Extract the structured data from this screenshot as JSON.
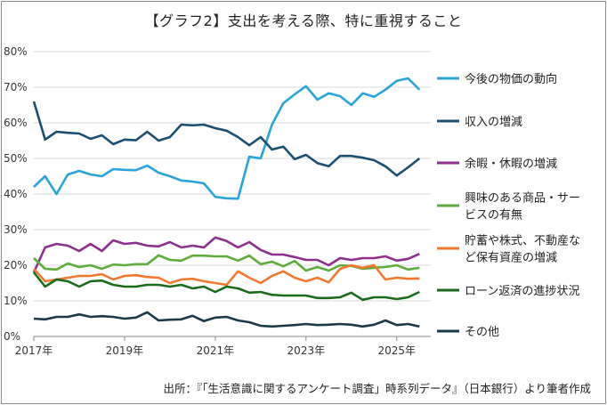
{
  "title": "【グラフ2】支出を考える際、特に重視すること",
  "source": "出所：『「生活意識に関するアンケート調査」時系列データ』（日本銀行）より筆者作成",
  "chart_data": {
    "type": "line",
    "title": "【グラフ2】支出を考える際、特に重視すること",
    "xlabel": "",
    "ylabel": "",
    "ylim": [
      0,
      80
    ],
    "xlim": [
      2017,
      2025.75
    ],
    "x_ticks": [
      "2017年",
      "2019年",
      "2021年",
      "2023年",
      "2025年"
    ],
    "y_ticks": [
      "0%",
      "10%",
      "20%",
      "30%",
      "40%",
      "50%",
      "60%",
      "70%",
      "80%"
    ],
    "x": [
      2017.0,
      2017.25,
      2017.5,
      2017.75,
      2018.0,
      2018.25,
      2018.5,
      2018.75,
      2019.0,
      2019.25,
      2019.5,
      2019.75,
      2020.0,
      2020.25,
      2020.5,
      2020.75,
      2021.0,
      2021.25,
      2021.5,
      2021.75,
      2022.0,
      2022.25,
      2022.5,
      2022.75,
      2023.0,
      2023.25,
      2023.5,
      2023.75,
      2024.0,
      2024.25,
      2024.5,
      2024.75,
      2025.0,
      2025.25,
      2025.5
    ],
    "series": [
      {
        "name": "今後の物価の動向",
        "color": "#2aa4d8",
        "label_lines": [
          "今後の物価の動向"
        ],
        "values": [
          42,
          45,
          40,
          45.5,
          46.5,
          45.5,
          45,
          47,
          46.8,
          46.7,
          48,
          46,
          45,
          43.8,
          43.5,
          43,
          39.2,
          38.8,
          38.7,
          50.5,
          50,
          59.5,
          65.5,
          68,
          70.3,
          66.5,
          68.3,
          67.5,
          65,
          68.3,
          67.3,
          69.3,
          71.8,
          72.5,
          69.3
        ]
      },
      {
        "name": "収入の増減",
        "color": "#1b4f72",
        "label_lines": [
          "収入の増減"
        ],
        "values": [
          66,
          55.3,
          57.5,
          57.2,
          57,
          55.5,
          56.5,
          54,
          55.3,
          55.1,
          57.5,
          55,
          56,
          59.5,
          59.3,
          59.5,
          58.5,
          57.8,
          56,
          53.7,
          56,
          52.5,
          53.3,
          49.8,
          51,
          48.7,
          47.8,
          50.7,
          50.7,
          50.2,
          49.5,
          47.8,
          45.2,
          47.5,
          50
        ]
      },
      {
        "name": "余暇・休暇の増減",
        "color": "#8e2f8e",
        "label_lines": [
          "余暇・休暇の増減"
        ],
        "values": [
          18,
          25,
          26,
          25.5,
          24,
          26,
          24,
          27,
          26,
          26.3,
          25.5,
          25.3,
          26.5,
          25,
          25.5,
          25,
          27.8,
          26.8,
          25,
          26.5,
          24.3,
          23,
          23,
          22.3,
          21.5,
          21.5,
          20,
          22,
          21.5,
          22,
          22,
          22.5,
          21.3,
          21.8,
          23.2
        ]
      },
      {
        "name": "興味のある商品・サービスの有無",
        "color": "#5cad3c",
        "label_lines": [
          "興味のある商品・サー",
          "ビスの有無"
        ],
        "values": [
          22,
          19,
          18.8,
          20.5,
          19.5,
          20,
          19,
          20.2,
          20,
          20.3,
          20.3,
          22.8,
          21.5,
          21.3,
          22.7,
          22.7,
          22.5,
          22.5,
          21.3,
          22.7,
          20.3,
          21,
          19.7,
          21.2,
          18.5,
          19.5,
          18.5,
          20,
          19.8,
          19,
          19.3,
          19.5,
          20,
          18.8,
          19.3
        ]
      },
      {
        "name": "貯蓄や株式、不動産など保有資産の増減",
        "color": "#f07830",
        "label_lines": [
          "貯蓄や株式、不動産な",
          "ど保有資産の増減"
        ],
        "values": [
          19,
          15.5,
          16,
          16.5,
          17,
          17,
          17.5,
          16,
          17,
          17.2,
          16.7,
          16.5,
          15,
          16,
          16.2,
          15.5,
          15,
          14.5,
          18.3,
          16.5,
          15,
          17,
          18.3,
          16.5,
          15.5,
          16.5,
          15.2,
          19,
          20,
          19.3,
          20,
          16,
          16.5,
          16.2,
          16.3
        ]
      },
      {
        "name": "ローン返済の進捗状況",
        "color": "#1a6b1a",
        "label_lines": [
          "ローン返済の進捗状況"
        ],
        "values": [
          18,
          14,
          16,
          15.5,
          14,
          15.5,
          15.7,
          14.5,
          14,
          14,
          14.5,
          14.5,
          14,
          14.5,
          13.5,
          14,
          12.5,
          14,
          13.5,
          12.3,
          12.5,
          11.7,
          11.5,
          11.5,
          11.5,
          10.8,
          10.8,
          11,
          12.3,
          10.3,
          11,
          11,
          10.5,
          11,
          12.5
        ]
      },
      {
        "name": "その他",
        "color": "#1a3a4a",
        "label_lines": [
          "その他"
        ],
        "values": [
          5,
          4.8,
          5.5,
          5.5,
          6.2,
          5.5,
          5.7,
          5.5,
          5,
          5.3,
          6.8,
          4.5,
          4.7,
          4.8,
          5.8,
          4.3,
          5.3,
          5.5,
          4.5,
          4,
          3,
          2.8,
          3,
          3.2,
          3.5,
          3.2,
          3.3,
          3.5,
          3.3,
          2.8,
          3.3,
          4.5,
          3.2,
          3.5,
          2.8
        ]
      }
    ]
  }
}
